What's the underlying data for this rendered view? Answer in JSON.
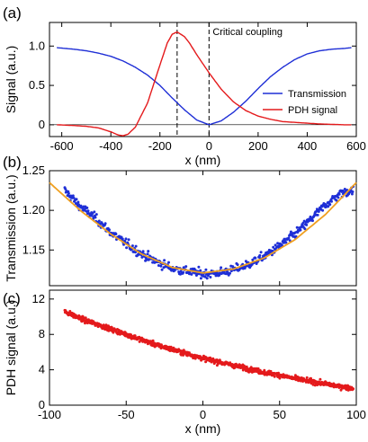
{
  "chart_data": [
    {
      "panel": "(a)",
      "type": "line",
      "xlabel": "x (nm)",
      "ylabel": "Signal (a.u.)",
      "xlim": [
        -650,
        600
      ],
      "ylim": [
        -0.15,
        1.3
      ],
      "xticks": [
        -600,
        -400,
        -200,
        0,
        200,
        400,
        600
      ],
      "yticks": [
        0,
        0.5,
        1.0
      ],
      "ytick_labels": [
        "0",
        "0.5",
        "1.0"
      ],
      "grid": false,
      "legend_position": "lower-right",
      "annotation": "Critical coupling",
      "vlines": [
        -130,
        0
      ],
      "series": [
        {
          "name": "Transmission",
          "color": "#1f2fd6",
          "x": [
            -620,
            -550,
            -500,
            -450,
            -400,
            -350,
            -300,
            -250,
            -200,
            -150,
            -100,
            -50,
            0,
            50,
            100,
            150,
            200,
            250,
            300,
            350,
            400,
            450,
            500,
            550,
            580
          ],
          "values": [
            0.98,
            0.96,
            0.94,
            0.91,
            0.87,
            0.81,
            0.73,
            0.63,
            0.5,
            0.34,
            0.19,
            0.06,
            0.0,
            0.05,
            0.16,
            0.3,
            0.46,
            0.61,
            0.73,
            0.83,
            0.9,
            0.94,
            0.96,
            0.97,
            0.98
          ]
        },
        {
          "name": "PDH signal",
          "color": "#e41a1c",
          "x": [
            -620,
            -550,
            -500,
            -450,
            -400,
            -370,
            -350,
            -330,
            -300,
            -250,
            -200,
            -170,
            -150,
            -130,
            -100,
            -80,
            -50,
            0,
            50,
            100,
            150,
            200,
            250,
            300,
            350,
            400,
            450,
            500,
            550,
            580
          ],
          "values": [
            0.0,
            -0.01,
            -0.02,
            -0.04,
            -0.09,
            -0.13,
            -0.14,
            -0.12,
            -0.03,
            0.28,
            0.76,
            1.04,
            1.15,
            1.18,
            1.12,
            1.04,
            0.89,
            0.66,
            0.45,
            0.29,
            0.18,
            0.11,
            0.07,
            0.04,
            0.03,
            0.02,
            0.01,
            0.005,
            0.0,
            0.0
          ]
        }
      ]
    },
    {
      "panel": "(b)",
      "type": "scatter",
      "xlabel": "",
      "ylabel": "Transmission (a.u.)",
      "xlim": [
        -100,
        100
      ],
      "ylim": [
        1.105,
        1.25
      ],
      "yticks": [
        1.15,
        1.2,
        1.25
      ],
      "ytick_labels": [
        "1.15",
        "1.20",
        "1.25"
      ],
      "grid": false,
      "series": [
        {
          "name": "",
          "kind": "points",
          "color": "#1f2fd6",
          "x": [
            -90,
            -80,
            -70,
            -60,
            -50,
            -40,
            -30,
            -20,
            -10,
            0,
            10,
            20,
            30,
            40,
            50,
            60,
            70,
            80,
            90,
            98
          ],
          "values": [
            1.225,
            1.205,
            1.19,
            1.172,
            1.158,
            1.145,
            1.135,
            1.127,
            1.123,
            1.12,
            1.121,
            1.125,
            1.132,
            1.142,
            1.155,
            1.17,
            1.188,
            1.207,
            1.222,
            1.225
          ]
        },
        {
          "name": "",
          "kind": "fit",
          "color": "#f0a020",
          "x": [
            -100,
            -80,
            -60,
            -40,
            -20,
            0,
            20,
            40,
            60,
            80,
            100
          ],
          "values": [
            1.235,
            1.2,
            1.17,
            1.145,
            1.128,
            1.121,
            1.126,
            1.14,
            1.163,
            1.195,
            1.235
          ]
        }
      ]
    },
    {
      "panel": "(c)",
      "type": "scatter",
      "xlabel": "x (nm)",
      "ylabel": "PDH signal (a.u.)",
      "xlim": [
        -100,
        100
      ],
      "ylim": [
        0,
        13
      ],
      "xticks": [
        -100,
        -50,
        0,
        50,
        100
      ],
      "yticks": [
        0,
        4,
        8,
        12
      ],
      "grid": false,
      "series": [
        {
          "name": "",
          "color": "#e41a1c",
          "x": [
            -90,
            -80,
            -70,
            -60,
            -50,
            -40,
            -30,
            -20,
            -10,
            0,
            10,
            20,
            30,
            40,
            50,
            60,
            70,
            80,
            90,
            98
          ],
          "values": [
            10.6,
            9.8,
            9.2,
            8.6,
            8.0,
            7.4,
            6.8,
            6.3,
            5.8,
            5.3,
            4.9,
            4.5,
            4.1,
            3.7,
            3.4,
            3.0,
            2.7,
            2.4,
            2.1,
            1.9
          ]
        }
      ]
    }
  ]
}
